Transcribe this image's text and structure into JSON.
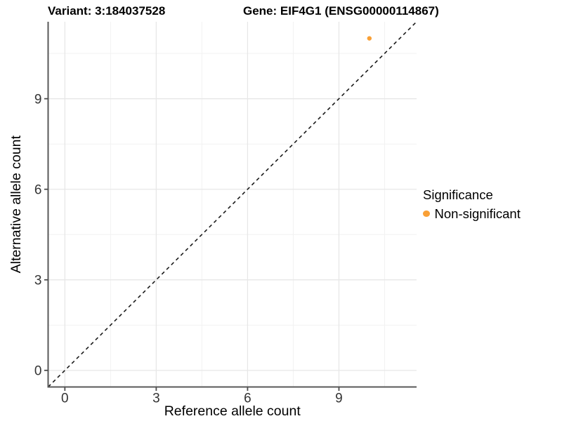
{
  "chart_data": {
    "type": "scatter",
    "titles": {
      "variant": "Variant: 3:184037528",
      "gene": "Gene: EIF4G1 (ENSG00000114867)"
    },
    "xlabel": "Reference allele count",
    "ylabel": "Alternative allele count",
    "xlim": [
      -0.55,
      11.55
    ],
    "ylim": [
      -0.55,
      11.55
    ],
    "x_ticks": [
      0,
      3,
      6,
      9
    ],
    "y_ticks": [
      0,
      3,
      6,
      9
    ],
    "x_minor_ticks": [
      1.5,
      4.5,
      7.5,
      10.5
    ],
    "y_minor_ticks": [
      1.5,
      4.5,
      7.5,
      10.5
    ],
    "grid": true,
    "identity_line": {
      "type": "dashed",
      "from": [
        -0.55,
        -0.55
      ],
      "to": [
        11.55,
        11.55
      ],
      "color": "#1a1a1a"
    },
    "series": [
      {
        "name": "Non-significant",
        "color": "#F9A036",
        "points": [
          {
            "x": 10,
            "y": 11
          }
        ]
      }
    ],
    "legend": {
      "position": "right",
      "title": "Significance",
      "items": [
        {
          "label": "Non-significant",
          "color": "#F9A036"
        }
      ]
    },
    "colors": {
      "axis_line": "#595959",
      "tick_mark": "#4d4d4d",
      "tick_label": "#333333",
      "axis_title": "#000000",
      "grid_major": "#e7e7e7",
      "grid_minor": "#f2f2f2",
      "background": "#ffffff"
    }
  }
}
